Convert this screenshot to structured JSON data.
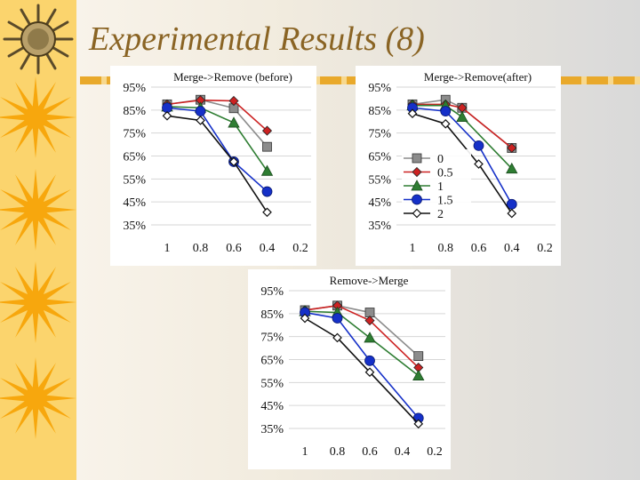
{
  "slide": {
    "title": "Experimental Results (8)",
    "accent_color": "#fbd46d",
    "title_color": "#8a6424",
    "icons": [
      "coin-icon",
      "sun-icon"
    ]
  },
  "chart_data": [
    {
      "type": "line",
      "title": "Merge->Remove (before)",
      "categories": [
        "1",
        "0.8",
        "0.6",
        "0.4",
        "0.2"
      ],
      "y_ticks": [
        "95%",
        "85%",
        "75%",
        "65%",
        "55%",
        "45%",
        "35%"
      ],
      "ylim": [
        0.35,
        0.95
      ],
      "grid": true,
      "legend": "none",
      "series": [
        {
          "key": "s0",
          "marker": "square",
          "color": "#8c8c8c",
          "x": [
            1,
            0.8,
            0.6,
            0.4
          ],
          "values": [
            0.875,
            0.895,
            0.858,
            0.69
          ]
        },
        {
          "key": "s05",
          "marker": "diamond",
          "color": "#cc2222",
          "x": [
            1,
            0.8,
            0.6,
            0.4
          ],
          "values": [
            0.875,
            0.893,
            0.89,
            0.76
          ]
        },
        {
          "key": "s1",
          "marker": "triangle",
          "color": "#2e7d32",
          "x": [
            1,
            0.8,
            0.6,
            0.4
          ],
          "values": [
            0.865,
            0.86,
            0.795,
            0.585
          ]
        },
        {
          "key": "s15",
          "marker": "circle",
          "color": "#1530c8",
          "x": [
            1,
            0.8,
            0.6,
            0.4
          ],
          "values": [
            0.86,
            0.845,
            0.625,
            0.495
          ]
        },
        {
          "key": "s2",
          "marker": "diamond-open",
          "color": "#111111",
          "x": [
            1,
            0.8,
            0.6,
            0.4
          ],
          "values": [
            0.825,
            0.805,
            0.625,
            0.405
          ]
        }
      ]
    },
    {
      "type": "line",
      "title": "Merge->Remove(after)",
      "categories": [
        "1",
        "0.8",
        "0.6",
        "0.4",
        "0.2"
      ],
      "y_ticks": [
        "95%",
        "85%",
        "75%",
        "65%",
        "55%",
        "45%",
        "35%"
      ],
      "ylim": [
        0.35,
        0.95
      ],
      "grid": true,
      "legend": "left",
      "legend_labels": [
        "0",
        "0.5",
        "1",
        "1.5",
        "2"
      ],
      "series": [
        {
          "key": "s0",
          "marker": "square",
          "color": "#8c8c8c",
          "x": [
            1,
            0.8,
            0.7,
            0.4
          ],
          "values": [
            0.875,
            0.895,
            0.86,
            0.685
          ]
        },
        {
          "key": "s05",
          "marker": "diamond",
          "color": "#cc2222",
          "x": [
            1,
            0.8,
            0.7,
            0.4
          ],
          "values": [
            0.875,
            0.875,
            0.86,
            0.685
          ]
        },
        {
          "key": "s1",
          "marker": "triangle",
          "color": "#2e7d32",
          "x": [
            1,
            0.8,
            0.7,
            0.4
          ],
          "values": [
            0.87,
            0.87,
            0.82,
            0.595
          ]
        },
        {
          "key": "s15",
          "marker": "circle",
          "color": "#1530c8",
          "x": [
            1,
            0.8,
            0.6,
            0.4
          ],
          "values": [
            0.86,
            0.845,
            0.695,
            0.44
          ]
        },
        {
          "key": "s2",
          "marker": "diamond-open",
          "color": "#111111",
          "x": [
            1,
            0.8,
            0.6,
            0.4
          ],
          "values": [
            0.835,
            0.79,
            0.615,
            0.4
          ]
        }
      ]
    },
    {
      "type": "line",
      "title": "Remove->Merge",
      "categories": [
        "1",
        "0.8",
        "0.6",
        "0.4",
        "0.2"
      ],
      "y_ticks": [
        "95%",
        "85%",
        "75%",
        "65%",
        "55%",
        "45%",
        "35%"
      ],
      "ylim": [
        0.35,
        0.95
      ],
      "grid": true,
      "legend": "none",
      "series": [
        {
          "key": "s0",
          "marker": "square",
          "color": "#8c8c8c",
          "x": [
            1,
            0.8,
            0.6,
            0.3
          ],
          "values": [
            0.865,
            0.885,
            0.855,
            0.665
          ]
        },
        {
          "key": "s05",
          "marker": "diamond",
          "color": "#cc2222",
          "x": [
            1,
            0.8,
            0.6,
            0.3
          ],
          "values": [
            0.865,
            0.885,
            0.82,
            0.615
          ]
        },
        {
          "key": "s1",
          "marker": "triangle",
          "color": "#2e7d32",
          "x": [
            1,
            0.8,
            0.6,
            0.3
          ],
          "values": [
            0.86,
            0.855,
            0.745,
            0.58
          ]
        },
        {
          "key": "s15",
          "marker": "circle",
          "color": "#1530c8",
          "x": [
            1,
            0.8,
            0.6,
            0.3
          ],
          "values": [
            0.855,
            0.83,
            0.645,
            0.395
          ]
        },
        {
          "key": "s2",
          "marker": "diamond-open",
          "color": "#111111",
          "x": [
            1,
            0.8,
            0.6,
            0.3
          ],
          "values": [
            0.83,
            0.745,
            0.595,
            0.37
          ]
        }
      ]
    }
  ]
}
